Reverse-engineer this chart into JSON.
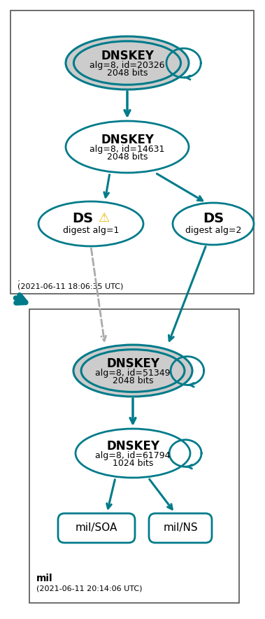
{
  "teal": "#007b8a",
  "gray_fill": "#cccccc",
  "white_fill": "#ffffff",
  "dark_gray": "#555555",
  "light_gray_arrow": "#aaaaaa",
  "box1_label": ".",
  "box1_timestamp": "(2021-06-11 18:06:35 UTC)",
  "box2_label": "mil",
  "box2_timestamp": "(2021-06-11 20:14:06 UTC)",
  "dnskey1_line1": "DNSKEY",
  "dnskey1_line2": "alg=8, id=20326",
  "dnskey1_line3": "2048 bits",
  "dnskey2_line1": "DNSKEY",
  "dnskey2_line2": "alg=8, id=14631",
  "dnskey2_line3": "2048 bits",
  "ds1_line2": "digest alg=1",
  "ds2_line1": "DS",
  "ds2_line2": "digest alg=2",
  "dnskey3_line1": "DNSKEY",
  "dnskey3_line2": "alg=8, id=51349",
  "dnskey3_line3": "2048 bits",
  "dnskey4_line1": "DNSKEY",
  "dnskey4_line2": "alg=8, id=61794",
  "dnskey4_line3": "1024 bits",
  "rr1_label": "mil/SOA",
  "rr2_label": "mil/NS",
  "fig_w": 3.79,
  "fig_h": 8.85,
  "dpi": 100
}
